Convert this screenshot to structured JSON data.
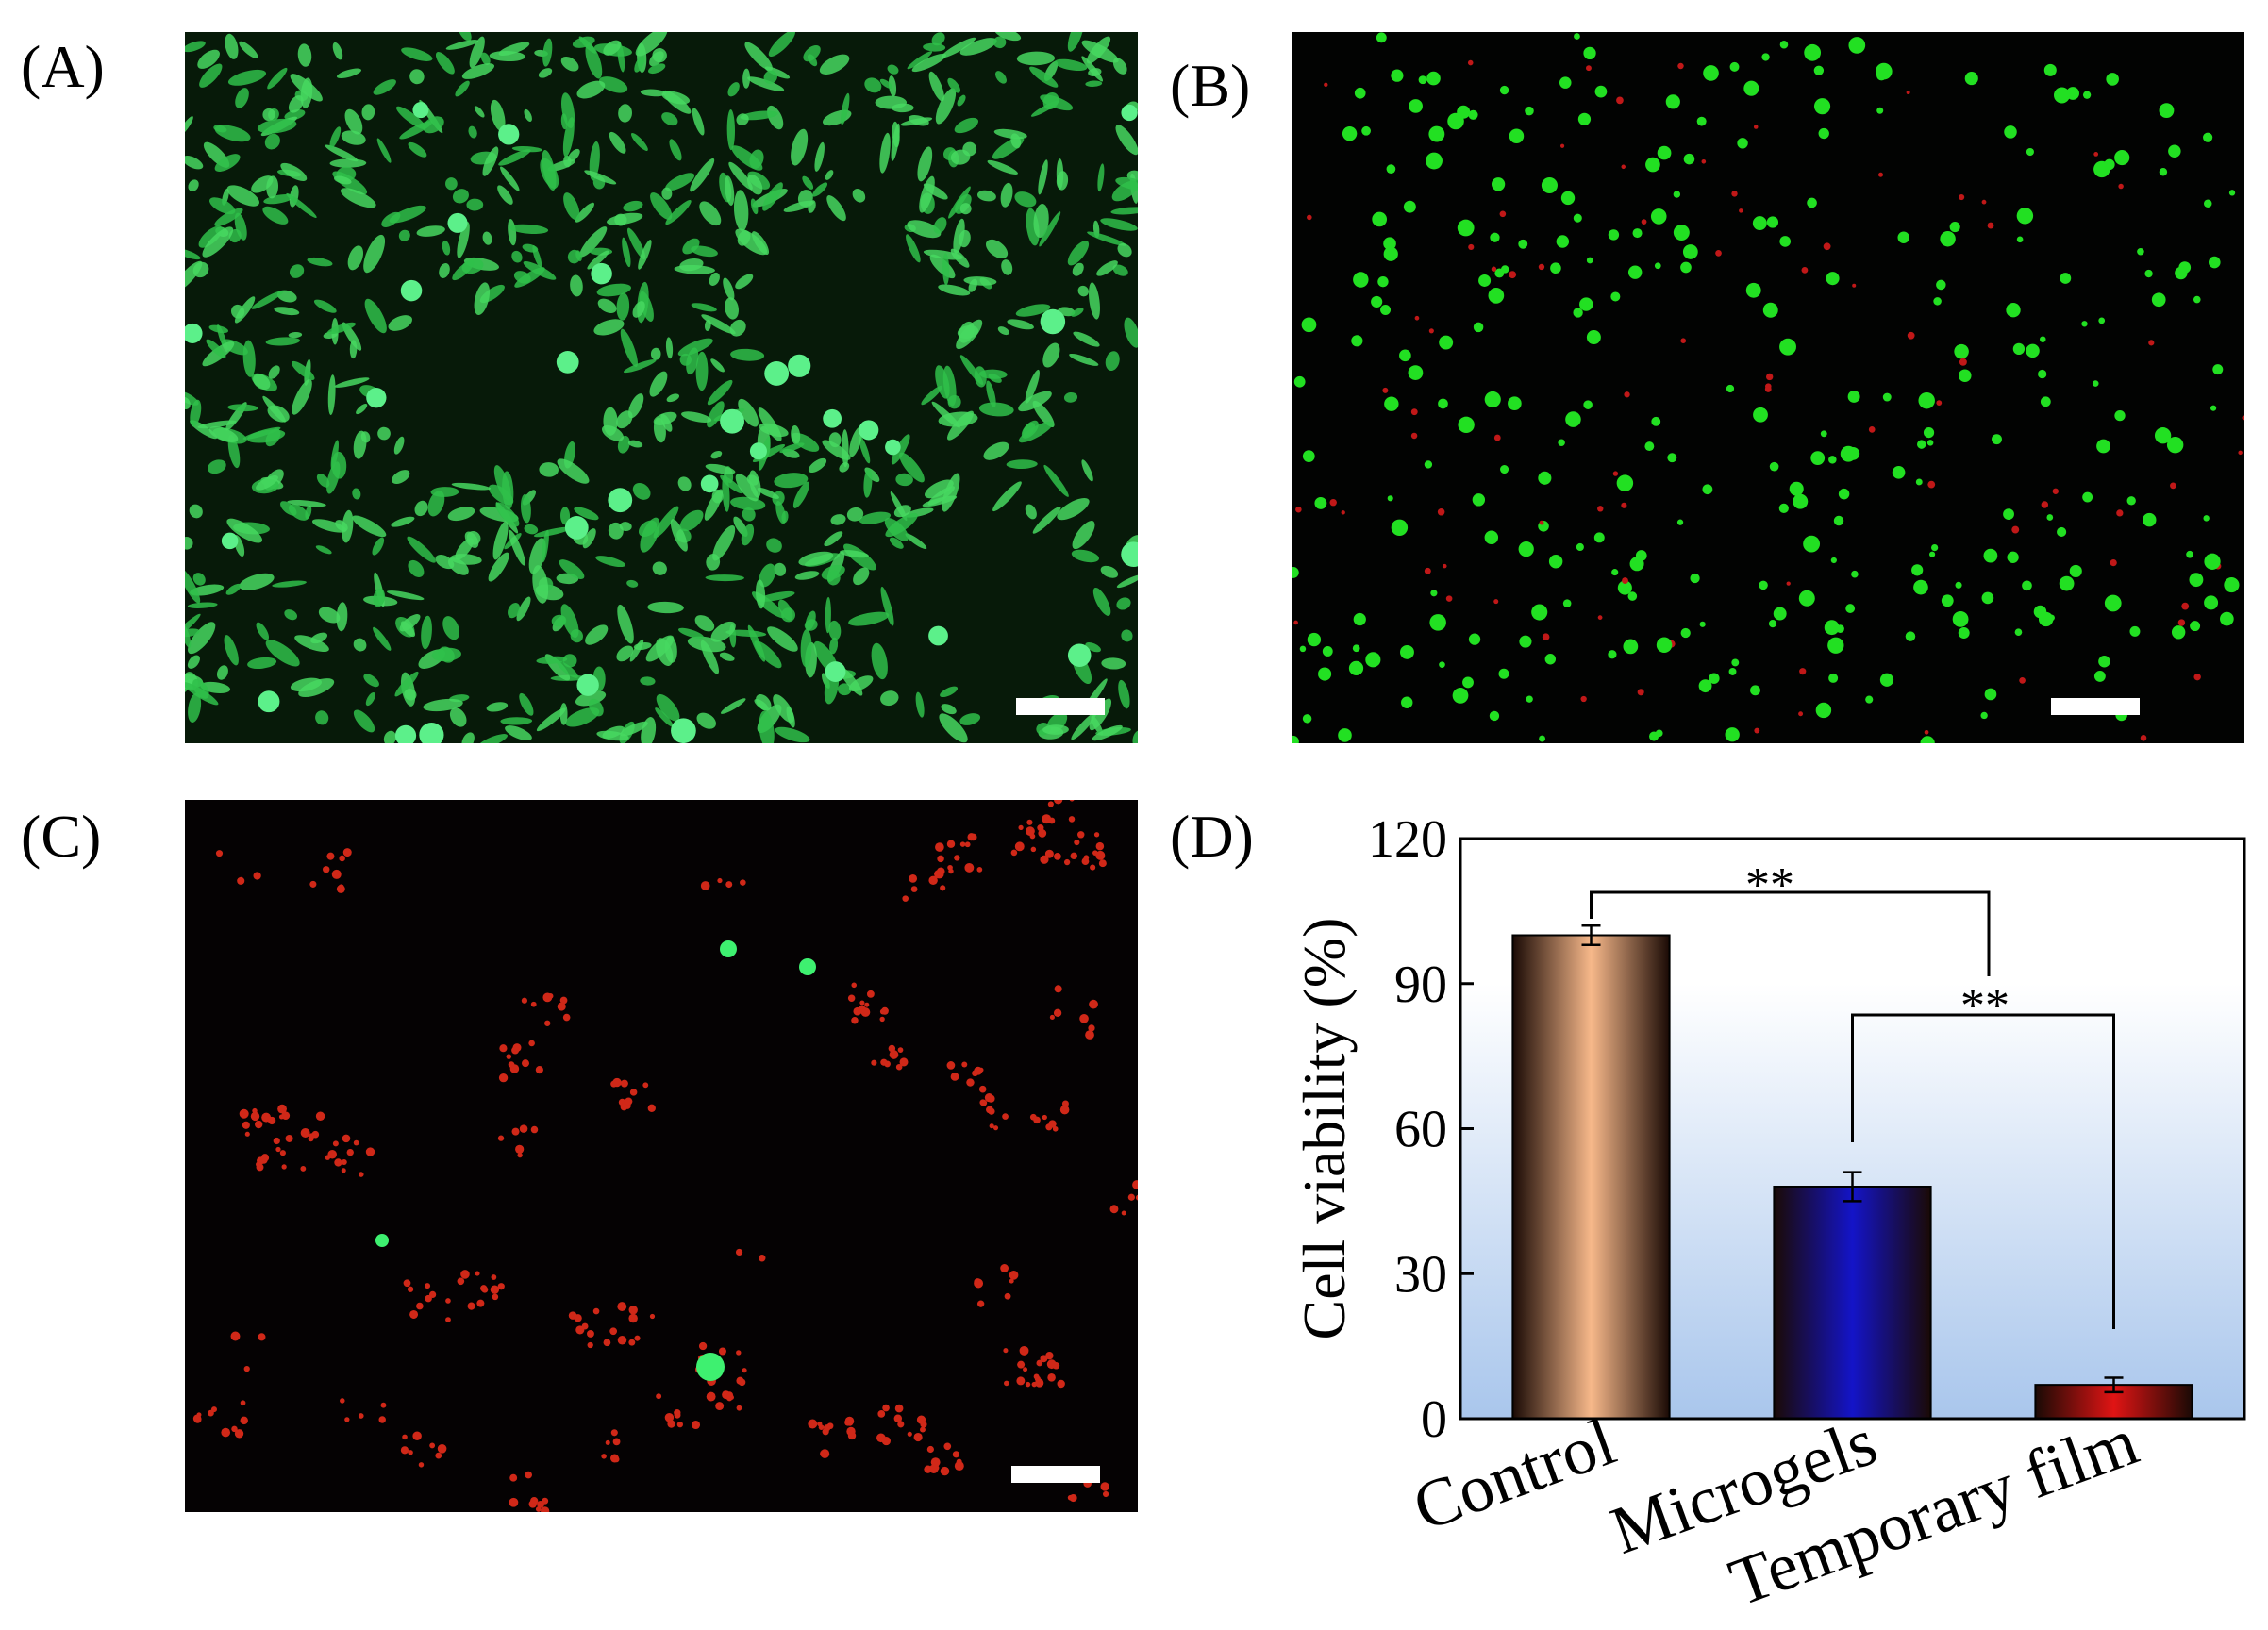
{
  "panels": [
    {
      "label": "(A)"
    },
    {
      "label": "(B)"
    },
    {
      "label": "(C)"
    },
    {
      "label": "(D)"
    }
  ],
  "chart_data": {
    "type": "bar",
    "ylabel": "Cell viability (%)",
    "categories": [
      "Control",
      "Microgels",
      "Temporary film"
    ],
    "values": [
      100,
      48,
      7
    ],
    "errors": [
      2,
      3,
      1.5
    ],
    "colors": [
      "#f7b88a",
      "#1414c8",
      "#e01414"
    ],
    "ylim": [
      0,
      120
    ],
    "yticks": [
      0,
      30,
      60,
      90,
      120
    ],
    "annotations": [
      "**",
      "**"
    ]
  }
}
